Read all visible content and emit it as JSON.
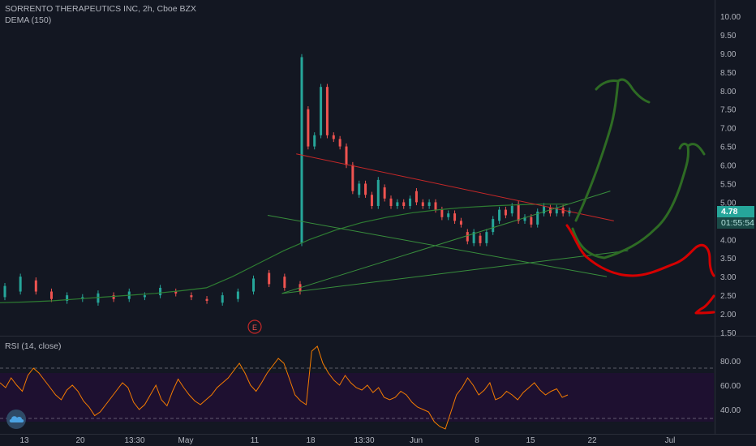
{
  "legend": {
    "symbol_line": "SORRENTO THERAPEUTICS INC, 2h, Cboe BZX",
    "indicator_line": "DEMA (150)",
    "rsi_line": "RSI (14, close)"
  },
  "last_price": {
    "label": "4.78",
    "countdown": "01:55:54"
  },
  "earnings_marker": "E",
  "colors": {
    "background": "#131722",
    "up": "#26a69a",
    "down": "#ef5350",
    "dema": "#2e7d32",
    "trend_red": "#c62828",
    "trend_green": "#388e3c",
    "draw_green": "#2e6b24",
    "draw_red": "#d50000",
    "rsi": "#f57c00",
    "rsi_band": "#1e1030"
  },
  "icons": {
    "brand": "tradingview-cloud-icon"
  },
  "chart_data": [
    {
      "type": "candlestick",
      "title": "SORRENTO THERAPEUTICS INC, 2h, Cboe BZX",
      "y_ticks": [
        "10.00",
        "9.50",
        "9.00",
        "8.50",
        "8.00",
        "7.50",
        "7.00",
        "6.50",
        "6.00",
        "5.50",
        "5.00",
        "4.50",
        "4.00",
        "3.50",
        "3.00",
        "2.50",
        "2.00",
        "1.50"
      ],
      "x_ticks": [
        "13",
        "20",
        "13:30",
        "May",
        "11",
        "18",
        "13:30",
        "Jun",
        "8",
        "15",
        "22",
        "Jul"
      ],
      "ylim": [
        1.5,
        10.0
      ],
      "scale": "linear",
      "grid": false,
      "trend": [
        [
          2.45,
          2.75
        ],
        [
          2.6,
          3.0
        ],
        [
          2.9,
          2.6
        ],
        [
          2.6,
          2.4
        ],
        [
          2.35,
          2.5
        ],
        [
          2.4,
          2.45
        ],
        [
          2.3,
          2.55
        ],
        [
          2.5,
          2.4
        ],
        [
          2.4,
          2.6
        ],
        [
          2.45,
          2.5
        ],
        [
          2.5,
          2.7
        ],
        [
          2.6,
          2.55
        ],
        [
          2.5,
          2.45
        ],
        [
          2.4,
          2.35
        ],
        [
          2.3,
          2.5
        ],
        [
          2.4,
          2.6
        ],
        [
          2.6,
          2.95
        ],
        [
          3.1,
          2.8
        ],
        [
          3.0,
          2.7
        ],
        [
          2.8,
          2.6
        ],
        [
          3.9,
          8.9
        ],
        [
          7.5,
          6.5
        ],
        [
          6.5,
          6.8
        ],
        [
          6.8,
          8.1
        ],
        [
          8.1,
          6.8
        ],
        [
          6.8,
          6.7
        ],
        [
          6.7,
          6.5
        ],
        [
          6.5,
          6.0
        ],
        [
          6.0,
          5.3
        ],
        [
          5.2,
          5.5
        ],
        [
          5.5,
          5.2
        ],
        [
          5.2,
          4.9
        ],
        [
          4.9,
          5.6
        ],
        [
          5.4,
          5.1
        ],
        [
          5.1,
          4.9
        ],
        [
          4.9,
          5.0
        ],
        [
          5.0,
          4.9
        ],
        [
          4.9,
          5.1
        ],
        [
          5.3,
          5.0
        ],
        [
          5.0,
          4.9
        ],
        [
          4.9,
          5.0
        ],
        [
          5.0,
          4.8
        ],
        [
          4.8,
          4.6
        ],
        [
          4.6,
          4.7
        ],
        [
          4.7,
          4.5
        ],
        [
          4.5,
          4.4
        ],
        [
          4.2,
          3.95
        ],
        [
          3.9,
          4.2
        ],
        [
          4.1,
          3.9
        ],
        [
          3.9,
          4.2
        ],
        [
          4.2,
          4.55
        ],
        [
          4.5,
          4.8
        ],
        [
          4.8,
          4.65
        ],
        [
          4.7,
          4.9
        ],
        [
          4.95,
          4.5
        ],
        [
          4.5,
          4.6
        ],
        [
          4.6,
          4.4
        ],
        [
          4.4,
          4.75
        ],
        [
          4.7,
          4.9
        ],
        [
          4.85,
          4.7
        ],
        [
          4.7,
          4.85
        ],
        [
          4.85,
          4.7
        ],
        [
          4.7,
          4.78
        ]
      ],
      "dema": [
        2.3,
        2.32,
        2.35,
        2.4,
        2.45,
        2.5,
        2.55,
        2.62,
        2.7,
        3.0,
        3.35,
        3.7,
        4.0,
        4.25,
        4.45,
        4.6,
        4.72,
        4.8,
        4.86,
        4.9,
        4.93,
        4.95,
        4.95
      ],
      "trendlines": [
        {
          "name": "upper-red",
          "from": [
            0.415,
            6.3
          ],
          "to": [
            0.86,
            4.5
          ]
        },
        {
          "name": "lower-green",
          "from": [
            0.375,
            4.65
          ],
          "to": [
            0.85,
            3.0
          ]
        },
        {
          "name": "rising-green-1",
          "from": [
            0.395,
            2.55
          ],
          "to": [
            0.855,
            5.3
          ]
        },
        {
          "name": "rising-green-2",
          "from": [
            0.395,
            2.55
          ],
          "to": [
            0.88,
            3.7
          ]
        }
      ]
    },
    {
      "type": "line",
      "title": "RSI (14, close)",
      "y_ticks": [
        "80.00",
        "60.00",
        "40.00"
      ],
      "ylim": [
        20,
        100
      ],
      "band": [
        30,
        70
      ],
      "values": [
        62,
        58,
        66,
        60,
        55,
        68,
        74,
        70,
        64,
        58,
        52,
        48,
        56,
        60,
        55,
        47,
        42,
        35,
        38,
        44,
        50,
        56,
        62,
        58,
        46,
        40,
        44,
        52,
        60,
        48,
        43,
        55,
        65,
        58,
        52,
        47,
        44,
        48,
        52,
        58,
        62,
        66,
        72,
        78,
        70,
        60,
        55,
        62,
        70,
        76,
        82,
        78,
        65,
        52,
        47,
        44,
        88,
        92,
        78,
        70,
        64,
        60,
        68,
        62,
        58,
        56,
        60,
        54,
        58,
        50,
        48,
        50,
        55,
        52,
        46,
        42,
        40,
        38,
        30,
        26,
        24,
        38,
        52,
        58,
        66,
        60,
        52,
        56,
        62,
        48,
        50,
        55,
        52,
        48,
        54,
        58,
        62,
        56,
        52,
        55,
        57,
        50,
        52
      ]
    }
  ]
}
